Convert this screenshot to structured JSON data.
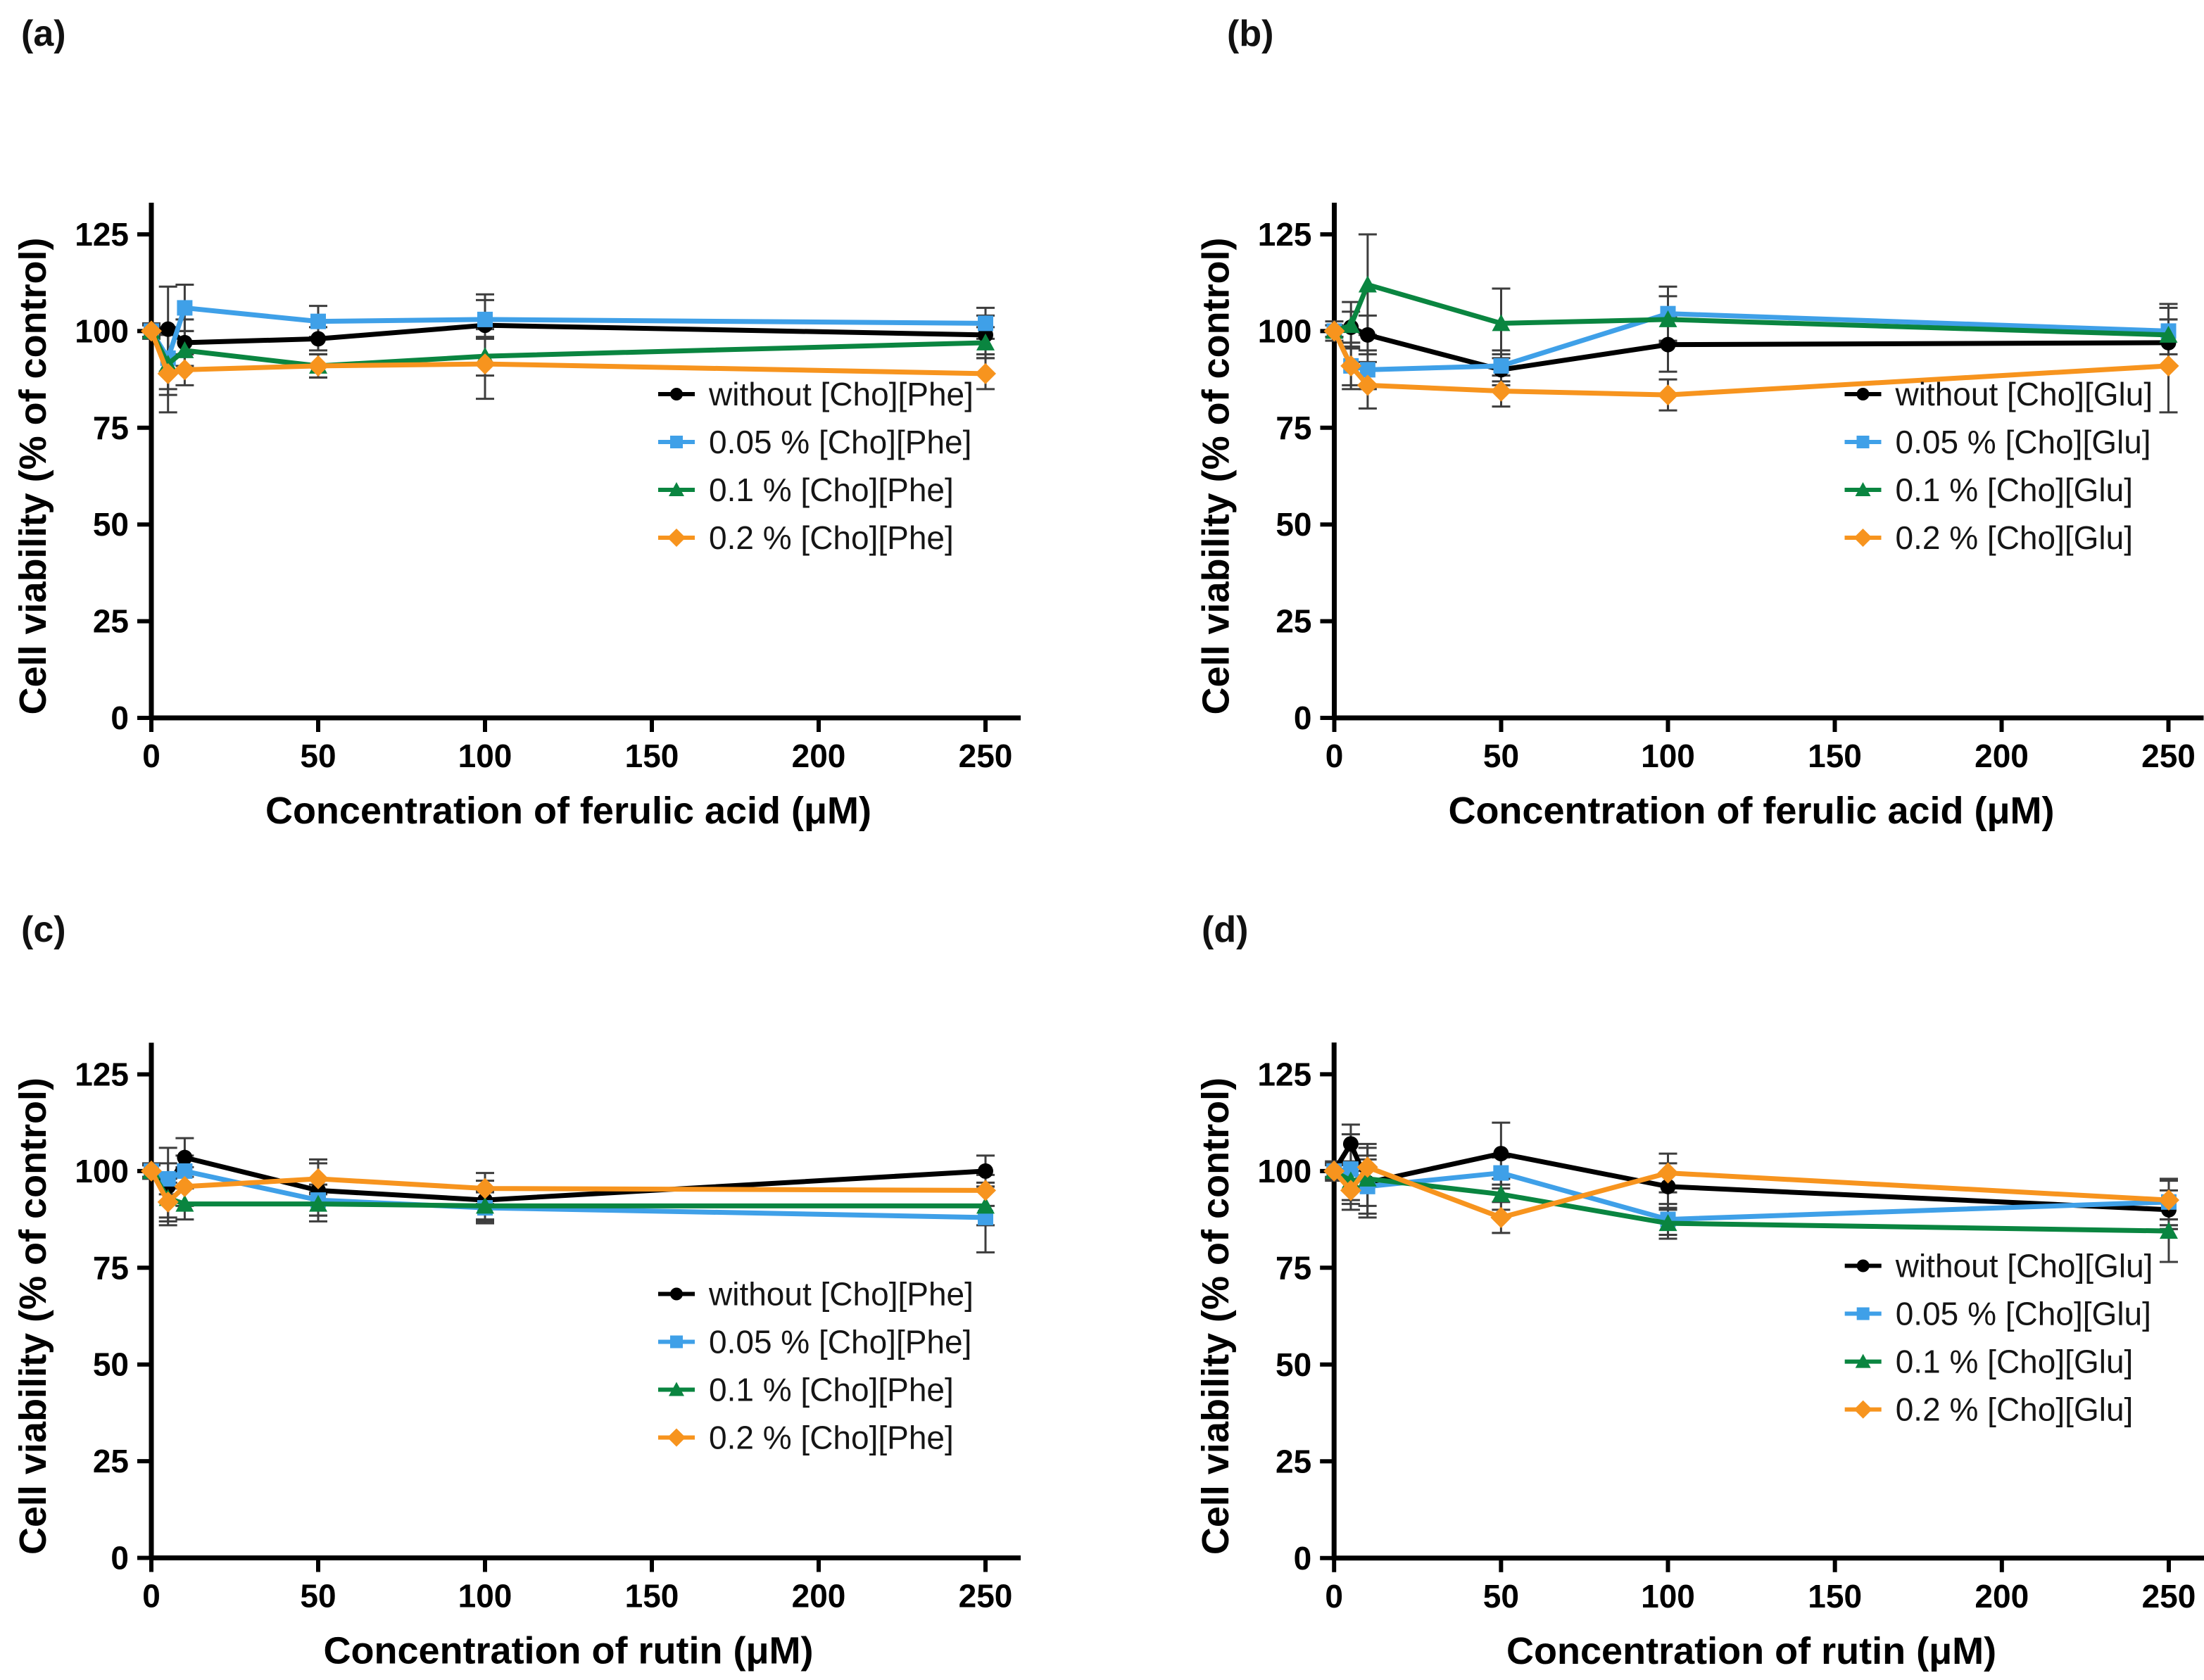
{
  "figure": {
    "background": "#ffffff",
    "error_bar_color": "#3d3d3d",
    "axis_color": "#000000"
  },
  "chart_data": [
    {
      "panel_label": "(a)",
      "type": "line",
      "xlabel": "Concentration of ferulic acid (μM)",
      "ylabel": "Cell viability (% of control)",
      "x": [
        0,
        5,
        10,
        50,
        100,
        250
      ],
      "x_ticks": [
        0,
        50,
        100,
        150,
        200,
        250
      ],
      "y_ticks": [
        0,
        25,
        50,
        75,
        100,
        125
      ],
      "xlim": [
        0,
        260
      ],
      "ylim": [
        0,
        130
      ],
      "grid": false,
      "legend_position": "inside-right",
      "series": [
        {
          "name": "without [Cho][Phe]",
          "color": "#000000",
          "marker": "circle",
          "y": [
            100,
            100.5,
            97,
            98,
            101.5,
            99
          ],
          "err": [
            1.5,
            11,
            6,
            3,
            8,
            5
          ]
        },
        {
          "name": "0.05 % [Cho][Phe]",
          "color": "#3FA0E8",
          "marker": "square",
          "y": [
            100,
            93,
            106,
            102.5,
            103,
            102
          ],
          "err": [
            1.5,
            8,
            6,
            4,
            5,
            4
          ]
        },
        {
          "name": "0.1 % [Cho][Phe]",
          "color": "#0A8540",
          "marker": "triangle",
          "y": [
            100,
            91.5,
            95,
            91,
            93.5,
            97
          ],
          "err": [
            1.5,
            8,
            5,
            3,
            5,
            4
          ]
        },
        {
          "name": "0.2 % [Cho][Phe]",
          "color": "#F7941E",
          "marker": "diamond",
          "y": [
            100,
            89,
            90,
            91,
            91.5,
            89
          ],
          "err": [
            2,
            10,
            4,
            3,
            9,
            4
          ]
        }
      ]
    },
    {
      "panel_label": "(b)",
      "type": "line",
      "xlabel": "Concentration of ferulic acid (μM)",
      "ylabel": "Cell viability (% of control)",
      "x": [
        0,
        5,
        10,
        50,
        100,
        250
      ],
      "x_ticks": [
        0,
        50,
        100,
        150,
        200,
        250
      ],
      "y_ticks": [
        0,
        25,
        50,
        75,
        100,
        125
      ],
      "xlim": [
        0,
        260
      ],
      "ylim": [
        0,
        130
      ],
      "grid": false,
      "legend_position": "inside-right",
      "series": [
        {
          "name": "without [Cho][Glu]",
          "color": "#000000",
          "marker": "circle",
          "y": [
            100,
            101,
            99,
            90,
            96.5,
            97
          ],
          "err": [
            1.5,
            4,
            5,
            4,
            7,
            6
          ]
        },
        {
          "name": "0.05 % [Cho][Glu]",
          "color": "#3FA0E8",
          "marker": "square",
          "y": [
            100,
            91,
            90,
            91,
            104.5,
            100
          ],
          "err": [
            1.5,
            5,
            5,
            4,
            7,
            6
          ]
        },
        {
          "name": "0.1 % [Cho][Glu]",
          "color": "#0A8540",
          "marker": "triangle",
          "y": [
            100,
            101.5,
            112,
            102,
            103,
            99
          ],
          "err": [
            1.5,
            6,
            13,
            9,
            6,
            8
          ]
        },
        {
          "name": "0.2 % [Cho][Glu]",
          "color": "#F7941E",
          "marker": "diamond",
          "y": [
            100,
            91,
            86,
            84.5,
            83.5,
            91
          ],
          "err": [
            2.5,
            6,
            6,
            4,
            4,
            12
          ]
        }
      ]
    },
    {
      "panel_label": "(c)",
      "type": "line",
      "xlabel": "Concentration of rutin (μM)",
      "ylabel": "Cell viability (% of control)",
      "x": [
        0,
        5,
        10,
        50,
        100,
        250
      ],
      "x_ticks": [
        0,
        50,
        100,
        150,
        200,
        250
      ],
      "y_ticks": [
        0,
        25,
        50,
        75,
        100,
        125
      ],
      "xlim": [
        0,
        260
      ],
      "ylim": [
        0,
        130
      ],
      "grid": false,
      "legend_position": "inside-right",
      "series": [
        {
          "name": "without [Cho][Phe]",
          "color": "#000000",
          "marker": "circle",
          "y": [
            100,
            96,
            103.5,
            95,
            92.5,
            100
          ],
          "err": [
            1.5,
            10,
            5,
            8,
            5,
            4
          ]
        },
        {
          "name": "0.05 % [Cho][Phe]",
          "color": "#3FA0E8",
          "marker": "square",
          "y": [
            100,
            98,
            100,
            92.5,
            90.5,
            88
          ],
          "err": [
            2,
            4,
            4,
            4,
            4,
            9
          ]
        },
        {
          "name": "0.1 % [Cho][Phe]",
          "color": "#0A8540",
          "marker": "triangle",
          "y": [
            100,
            93,
            91.5,
            91.5,
            91,
            91
          ],
          "err": [
            1.5,
            5,
            4,
            3,
            4,
            5
          ]
        },
        {
          "name": "0.2 % [Cho][Phe]",
          "color": "#F7941E",
          "marker": "diamond",
          "y": [
            100,
            92,
            96,
            98,
            95.5,
            95
          ],
          "err": [
            1.5,
            5,
            5,
            4,
            4,
            4
          ]
        }
      ]
    },
    {
      "panel_label": "(d)",
      "type": "line",
      "xlabel": "Concentration of rutin (μM)",
      "ylabel": "Cell viability (% of control)",
      "x": [
        0,
        5,
        10,
        50,
        100,
        250
      ],
      "x_ticks": [
        0,
        50,
        100,
        150,
        200,
        250
      ],
      "y_ticks": [
        0,
        25,
        50,
        75,
        100,
        125
      ],
      "xlim": [
        0,
        260
      ],
      "ylim": [
        0,
        130
      ],
      "grid": false,
      "legend_position": "inside-right",
      "series": [
        {
          "name": "without [Cho][Glu]",
          "color": "#000000",
          "marker": "circle",
          "y": [
            100,
            107,
            97,
            104.5,
            96,
            90
          ],
          "err": [
            1.5,
            5,
            6,
            8,
            6,
            5
          ]
        },
        {
          "name": "0.05 % [Cho][Glu]",
          "color": "#3FA0E8",
          "marker": "square",
          "y": [
            100,
            100.5,
            96,
            99.5,
            87.5,
            92
          ],
          "err": [
            2,
            9,
            8,
            4,
            4,
            6
          ]
        },
        {
          "name": "0.1 % [Cho][Glu]",
          "color": "#0A8540",
          "marker": "triangle",
          "y": [
            100,
            97.5,
            98,
            94,
            86.5,
            84.5
          ],
          "err": [
            2.5,
            5,
            9,
            4,
            4,
            8
          ]
        },
        {
          "name": "0.2 % [Cho][Glu]",
          "color": "#F7941E",
          "marker": "diamond",
          "y": [
            100,
            95,
            101,
            88,
            99.5,
            92.5
          ],
          "err": [
            2,
            5,
            5,
            4,
            5,
            5
          ]
        }
      ]
    }
  ]
}
